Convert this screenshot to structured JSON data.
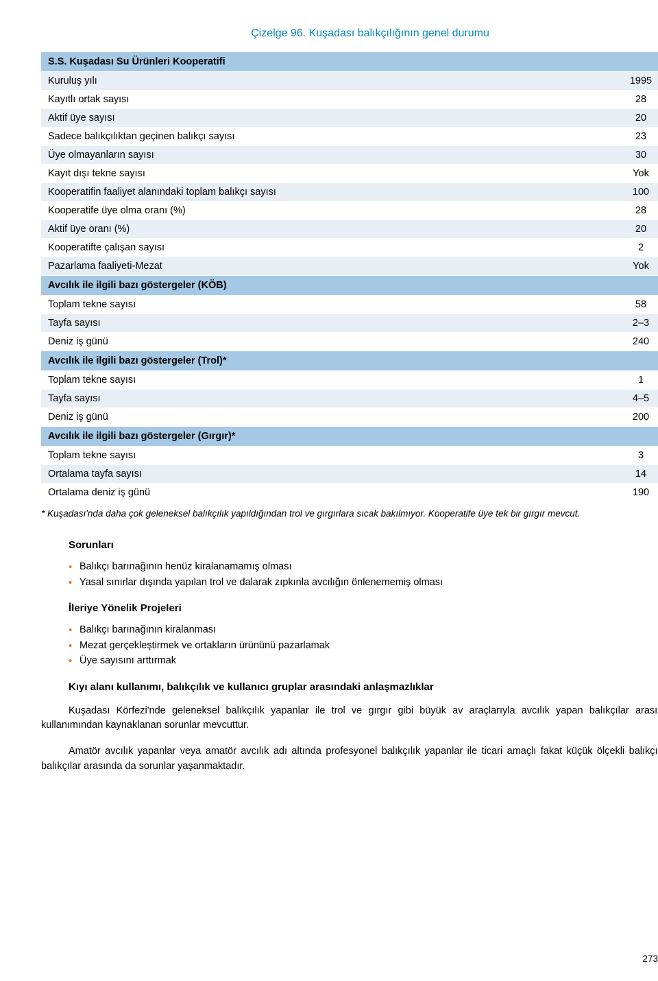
{
  "title": "Çizelge 96. Kuşadası balıkçılığının genel durumu",
  "table": {
    "colors": {
      "header_bg": "#a5c8e4",
      "row_light": "#e8eef6",
      "row_white": "#ffffff",
      "title_color": "#0088bb",
      "bullet_color": "#e67817"
    },
    "sections": [
      {
        "header": "S.S. Kuşadası Su Ürünleri Kooperatifi",
        "rows": [
          {
            "label": "Kuruluş yılı",
            "value": "1995",
            "shade": "light"
          },
          {
            "label": "Kayıtlı ortak sayısı",
            "value": "28",
            "shade": "white"
          },
          {
            "label": "Aktif üye sayısı",
            "value": "20",
            "shade": "light"
          },
          {
            "label": "Sadece balıkçılıktan geçinen balıkçı sayısı",
            "value": "23",
            "shade": "white"
          },
          {
            "label": "Üye olmayanların sayısı",
            "value": "30",
            "shade": "light"
          },
          {
            "label": "Kayıt dışı tekne sayısı",
            "value": "Yok",
            "shade": "white"
          },
          {
            "label": "Kooperatifin faaliyet alanındaki toplam balıkçı sayısı",
            "value": "100",
            "shade": "light"
          },
          {
            "label": "Kooperatife üye olma oranı (%)",
            "value": "28",
            "shade": "white"
          },
          {
            "label": "Aktif üye oranı (%)",
            "value": "20",
            "shade": "light"
          },
          {
            "label": "Kooperatifte çalışan sayısı",
            "value": "2",
            "shade": "white"
          },
          {
            "label": "Pazarlama faaliyeti-Mezat",
            "value": "Yok",
            "shade": "light"
          }
        ]
      },
      {
        "header": "Avcılık ile ilgili bazı göstergeler (KÖB)",
        "rows": [
          {
            "label": "Toplam tekne sayısı",
            "value": "58",
            "shade": "white"
          },
          {
            "label": "Tayfa sayısı",
            "value": "2–3",
            "shade": "light"
          },
          {
            "label": "Deniz iş günü",
            "value": "240",
            "shade": "white"
          }
        ]
      },
      {
        "header": "Avcılık ile ilgili bazı göstergeler (Trol)*",
        "rows": [
          {
            "label": "Toplam tekne sayısı",
            "value": "1",
            "shade": "white"
          },
          {
            "label": "Tayfa sayısı",
            "value": "4–5",
            "shade": "light"
          },
          {
            "label": "Deniz iş günü",
            "value": "200",
            "shade": "white"
          }
        ]
      },
      {
        "header": "Avcılık ile ilgili bazı göstergeler (Gırgır)*",
        "rows": [
          {
            "label": "Toplam tekne sayısı",
            "value": "3",
            "shade": "white"
          },
          {
            "label": "Ortalama tayfa sayısı",
            "value": "14",
            "shade": "light"
          },
          {
            "label": "Ortalama deniz iş günü",
            "value": "190",
            "shade": "white"
          }
        ]
      }
    ]
  },
  "footnote": "* Kuşadası'nda daha çok geleneksel balıkçılık yapıldığından trol ve gırgırlara sıcak bakılmıyor. Kooperatife üye tek bir gırgır mevcut.",
  "body": {
    "h1": "Sorunları",
    "list1": [
      "Balıkçı barınağının henüz kiralanamamış olması",
      "Yasal sınırlar dışında yapılan trol ve dalarak zıpkınla avcılığın önlenememiş olması"
    ],
    "h2": "İleriye Yönelik Projeleri",
    "list2": [
      "Balıkçı barınağının kiralanması",
      "Mezat gerçekleştirmek ve ortakların ürününü pazarlamak",
      "Üye sayısını arttırmak"
    ],
    "h3": "Kıyı alanı kullanımı, balıkçılık ve kullanıcı gruplar arasındaki anlaşmazlıklar",
    "p1": "Kuşadası Körfezi'nde geleneksel balıkçılık yapanlar ile trol ve gırgır gibi büyük av araçlarıyla avcılık yapan balıkçılar arasında alan kullanımından kaynaklanan sorunlar mevcuttur.",
    "p2": "Amatör avcılık yapanlar veya amatör avcılık adı altında profesyonel balıkçılık yapanlar ile ticari amaçlı fakat küçük ölçekli balıkçılık yapan balıkçılar arasında da sorunlar yaşanmaktadır."
  },
  "pagenum": "273"
}
